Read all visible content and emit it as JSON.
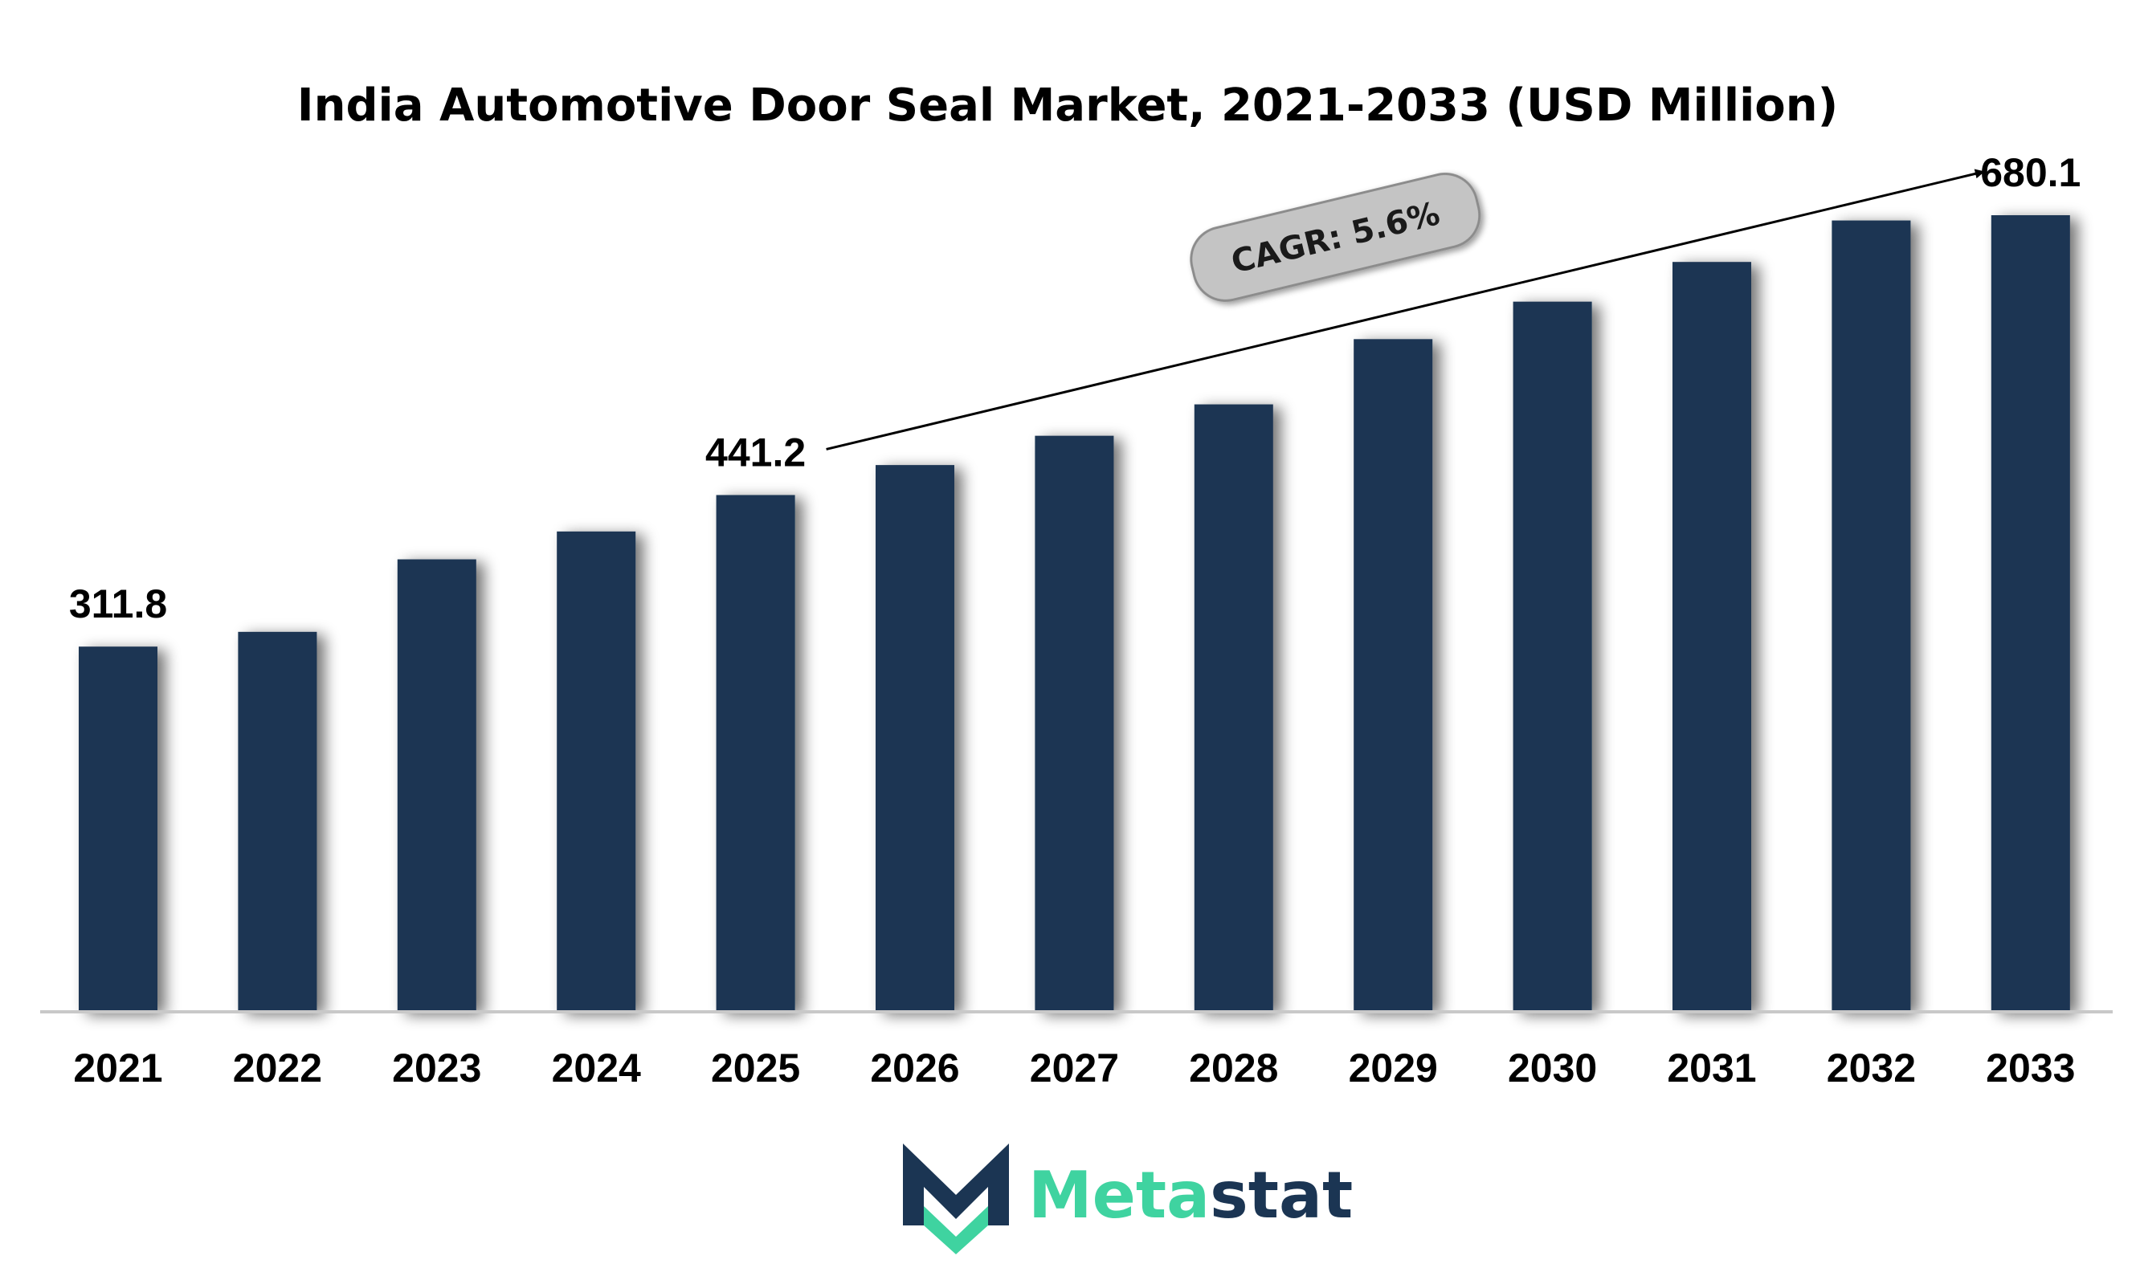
{
  "colors": {
    "bar": "#1b3553",
    "axis": "#c8c8c8",
    "text": "#000000",
    "cagr_fill": "#c4c4c4",
    "cagr_stroke": "#8c8c8c",
    "logo_teal": "#3fd3a0",
    "logo_navy": "#1b3553"
  },
  "chart_data": {
    "type": "bar",
    "title": "India Automotive Door Seal Market, 2021-2033 (USD Million)",
    "xlabel": "",
    "ylabel": "",
    "grid": false,
    "categories": [
      "2021",
      "2022",
      "2023",
      "2024",
      "2025",
      "2026",
      "2027",
      "2028",
      "2029",
      "2030",
      "2031",
      "2032",
      "2033"
    ],
    "values": [
      311.8,
      324.4,
      386.3,
      410.1,
      441.2,
      466.8,
      491.8,
      518.6,
      574.3,
      606.3,
      640.2,
      675.6,
      680.1
    ],
    "ylim": [
      0,
      720
    ],
    "data_labels": [
      {
        "category": "2021",
        "text": "311.8"
      },
      {
        "category": "2025",
        "text": "441.2"
      },
      {
        "category": "2033",
        "text": "680.1"
      }
    ],
    "annotation": {
      "text": "CAGR: 5.6%",
      "arrow_from": "2025",
      "arrow_to": "2033"
    }
  },
  "logo": {
    "text_part1": "Meta",
    "text_part2": "stat",
    "icon": "metastat-m-logo-icon"
  }
}
